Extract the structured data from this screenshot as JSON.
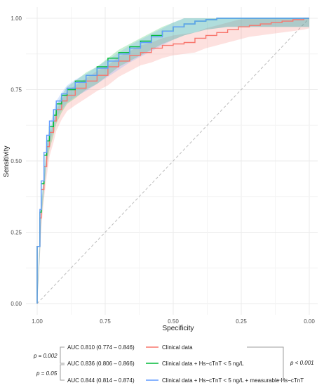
{
  "chart_data": {
    "type": "line",
    "xlabel": "Specificity",
    "ylabel": "Sensitivity",
    "x_reversed": true,
    "xlim": [
      1.0,
      0.0
    ],
    "ylim": [
      0.0,
      1.0
    ],
    "x_ticks": [
      "1.00",
      "0.75",
      "0.50",
      "0.25",
      "0.00"
    ],
    "y_ticks": [
      "0.00",
      "0.25",
      "0.50",
      "0.75",
      "1.00"
    ],
    "grid": true,
    "reference_line": "diagonal dashed",
    "legend_position": "bottom",
    "series": [
      {
        "name": "Clinical data",
        "auc_label": "AUC 0.810 (0.774 – 0.846)",
        "color": "#F8766D",
        "specificity": [
          1.0,
          0.99,
          0.985,
          0.975,
          0.965,
          0.955,
          0.94,
          0.93,
          0.91,
          0.89,
          0.86,
          0.82,
          0.78,
          0.74,
          0.7,
          0.66,
          0.62,
          0.58,
          0.54,
          0.5,
          0.46,
          0.42,
          0.38,
          0.34,
          0.3,
          0.26,
          0.22,
          0.18,
          0.14,
          0.1,
          0.06,
          0.02,
          0.0
        ],
        "sensitivity": [
          0.0,
          0.2,
          0.3,
          0.4,
          0.48,
          0.55,
          0.6,
          0.64,
          0.68,
          0.71,
          0.73,
          0.755,
          0.78,
          0.8,
          0.83,
          0.85,
          0.87,
          0.88,
          0.895,
          0.905,
          0.91,
          0.915,
          0.93,
          0.94,
          0.95,
          0.96,
          0.97,
          0.975,
          0.98,
          0.985,
          0.99,
          0.995,
          1.0
        ],
        "band": 0.035
      },
      {
        "name": "Clinical data + Hs−cTnT < 5 ng/L",
        "auc_label": "AUC 0.836 (0.806 – 0.866)",
        "color": "#00BA38",
        "specificity": [
          1.0,
          0.99,
          0.985,
          0.975,
          0.965,
          0.955,
          0.94,
          0.93,
          0.91,
          0.89,
          0.86,
          0.82,
          0.78,
          0.74,
          0.7,
          0.66,
          0.62,
          0.58,
          0.54,
          0.5,
          0.46,
          0.42,
          0.38,
          0.34,
          0.3,
          0.26,
          0.22,
          0.18,
          0.14,
          0.1,
          0.06,
          0.02,
          0.0
        ],
        "sensitivity": [
          0.0,
          0.2,
          0.32,
          0.42,
          0.52,
          0.57,
          0.62,
          0.66,
          0.7,
          0.73,
          0.75,
          0.78,
          0.8,
          0.83,
          0.86,
          0.88,
          0.9,
          0.92,
          0.94,
          0.955,
          0.97,
          0.98,
          0.99,
          0.995,
          1.0,
          1.0,
          1.0,
          1.0,
          1.0,
          1.0,
          1.0,
          1.0,
          1.0
        ],
        "band": 0.03
      },
      {
        "name": "Clinical data + Hs−cTnT < 5 ng/L + measurable Hs−cTnT",
        "auc_label": "AUC 0.844 (0.814 – 0.874)",
        "color": "#619CFF",
        "specificity": [
          1.0,
          0.99,
          0.985,
          0.975,
          0.965,
          0.955,
          0.94,
          0.93,
          0.91,
          0.89,
          0.86,
          0.82,
          0.78,
          0.74,
          0.7,
          0.66,
          0.62,
          0.58,
          0.54,
          0.5,
          0.46,
          0.42,
          0.38,
          0.34,
          0.3,
          0.26,
          0.22,
          0.18,
          0.14,
          0.1,
          0.06,
          0.02,
          0.0
        ],
        "sensitivity": [
          0.0,
          0.2,
          0.33,
          0.43,
          0.53,
          0.59,
          0.64,
          0.68,
          0.71,
          0.735,
          0.755,
          0.775,
          0.8,
          0.825,
          0.85,
          0.875,
          0.895,
          0.915,
          0.935,
          0.955,
          0.97,
          0.98,
          0.99,
          0.995,
          1.0,
          1.0,
          1.0,
          1.0,
          1.0,
          1.0,
          1.0,
          1.0,
          1.0
        ],
        "band": 0.03
      }
    ]
  },
  "comparisons": {
    "p_left_top": "p = 0.002",
    "p_left_bottom": "p = 0.05",
    "p_right": "p < 0.001"
  }
}
